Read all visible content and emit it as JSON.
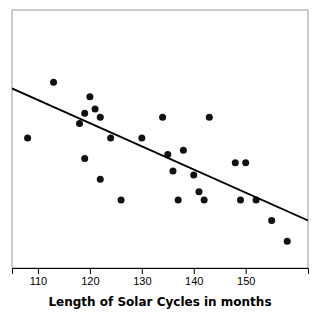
{
  "chart_data": {
    "type": "scatter",
    "xlabel": "Length of Solar Cycles in months",
    "xlim": [
      105,
      162
    ],
    "ylim": [
      85,
      210
    ],
    "xticks": [
      110,
      120,
      130,
      140,
      150
    ],
    "tick_labels": "x",
    "series": [
      {
        "type": "scatter",
        "color": "#111111",
        "x": [
          108,
          113,
          118,
          119,
          119,
          120,
          121,
          122,
          122,
          124,
          126,
          130,
          134,
          135,
          136,
          137,
          138,
          140,
          141,
          142,
          143,
          148,
          149,
          150,
          152,
          155,
          158
        ],
        "values": [
          148,
          175,
          155,
          160,
          138,
          168,
          162,
          158,
          128,
          148,
          118,
          148,
          158,
          140,
          132,
          118,
          142,
          130,
          122,
          118,
          158,
          136,
          118,
          136,
          118,
          108,
          98
        ]
      },
      {
        "type": "line",
        "color": "#000000",
        "x": [
          105,
          162
        ],
        "values": [
          172,
          108
        ]
      }
    ]
  }
}
